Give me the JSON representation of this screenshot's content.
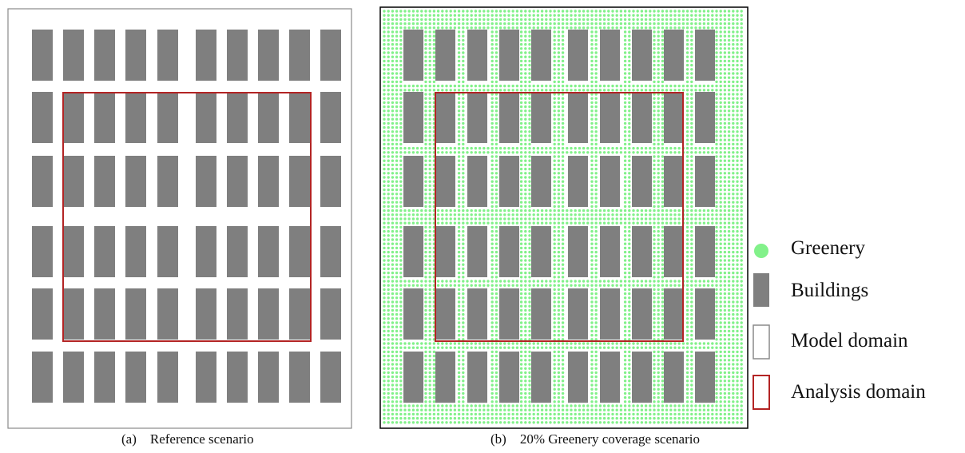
{
  "panels": [
    {
      "id": "reference",
      "caption_label": "(a)",
      "caption_text": "Reference scenario",
      "greenery": false
    },
    {
      "id": "greenery",
      "caption_label": "(b)",
      "caption_text": "20% Greenery coverage scenario",
      "greenery": true
    }
  ],
  "legend": [
    {
      "key": "greenery",
      "label": "Greenery"
    },
    {
      "key": "buildings",
      "label": "Buildings"
    },
    {
      "key": "model_domain",
      "label": "Model domain"
    },
    {
      "key": "analysis_domain",
      "label": "Analysis domain"
    }
  ],
  "building_grid": {
    "columns": 10,
    "rows": 6
  },
  "colors": {
    "building": "#7f7f7f",
    "greenery": "#82f18a",
    "model_domain": "#8a8a8a",
    "model_domain_dark": "#000000",
    "analysis_domain": "#b32424"
  }
}
